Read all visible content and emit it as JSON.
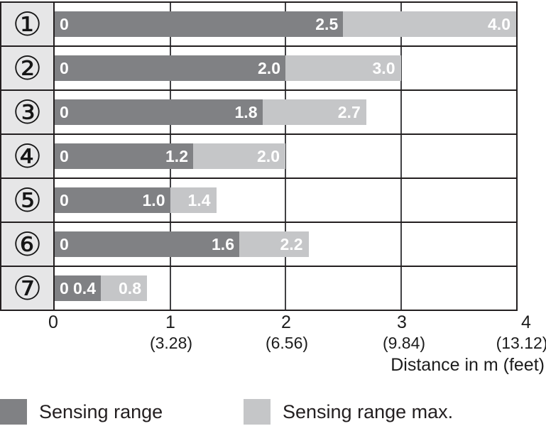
{
  "chart_data": {
    "type": "bar",
    "orientation": "horizontal",
    "xlabel": "Distance in m (feet)",
    "xlim": [
      0,
      4
    ],
    "grid": true,
    "legend_position": "bottom",
    "categories": [
      "①",
      "②",
      "③",
      "④",
      "⑤",
      "⑥",
      "⑦"
    ],
    "series": [
      {
        "name": "Sensing range",
        "color": "#808184",
        "values": [
          2.5,
          2.0,
          1.8,
          1.2,
          1.0,
          1.6,
          0.4
        ]
      },
      {
        "name": "Sensing range max.",
        "color": "#c5c6c8",
        "values": [
          4.0,
          3.0,
          2.7,
          2.0,
          1.4,
          2.2,
          0.8
        ]
      }
    ],
    "rows": [
      {
        "category": "①",
        "start_label": "0",
        "sensing_range": 2.5,
        "sensing_range_label": "2.5",
        "sensing_range_max": 4.0,
        "sensing_range_max_label": "4.0"
      },
      {
        "category": "②",
        "start_label": "0",
        "sensing_range": 2.0,
        "sensing_range_label": "2.0",
        "sensing_range_max": 3.0,
        "sensing_range_max_label": "3.0"
      },
      {
        "category": "③",
        "start_label": "0",
        "sensing_range": 1.8,
        "sensing_range_label": "1.8",
        "sensing_range_max": 2.7,
        "sensing_range_max_label": "2.7"
      },
      {
        "category": "④",
        "start_label": "0",
        "sensing_range": 1.2,
        "sensing_range_label": "1.2",
        "sensing_range_max": 2.0,
        "sensing_range_max_label": "2.0"
      },
      {
        "category": "⑤",
        "start_label": "0",
        "sensing_range": 1.0,
        "sensing_range_label": "1.0",
        "sensing_range_max": 1.4,
        "sensing_range_max_label": "1.4"
      },
      {
        "category": "⑥",
        "start_label": "0",
        "sensing_range": 1.6,
        "sensing_range_label": "1.6",
        "sensing_range_max": 2.2,
        "sensing_range_max_label": "2.2"
      },
      {
        "category": "⑦",
        "start_label": "0",
        "sensing_range": 0.4,
        "sensing_range_label": "0.4",
        "sensing_range_max": 0.8,
        "sensing_range_max_label": "0.8"
      }
    ],
    "x_ticks": [
      {
        "m": "0",
        "feet": ""
      },
      {
        "m": "1",
        "feet": "(3.28)"
      },
      {
        "m": "2",
        "feet": "(6.56)"
      },
      {
        "m": "3",
        "feet": "(9.84)"
      },
      {
        "m": "4",
        "feet": "(13.12)"
      }
    ],
    "legend": [
      {
        "label": "Sensing range",
        "color": "#808184"
      },
      {
        "label": "Sensing range max.",
        "color": "#c5c6c8"
      }
    ]
  },
  "colors": {
    "bar_dark": "#808184",
    "bar_light": "#c5c6c8",
    "row_header_bg": "#e6e6e7",
    "border": "#231f20",
    "gridline": "#414144",
    "bar_text": "#ffffff",
    "axis_text": "#1c1c1c"
  }
}
